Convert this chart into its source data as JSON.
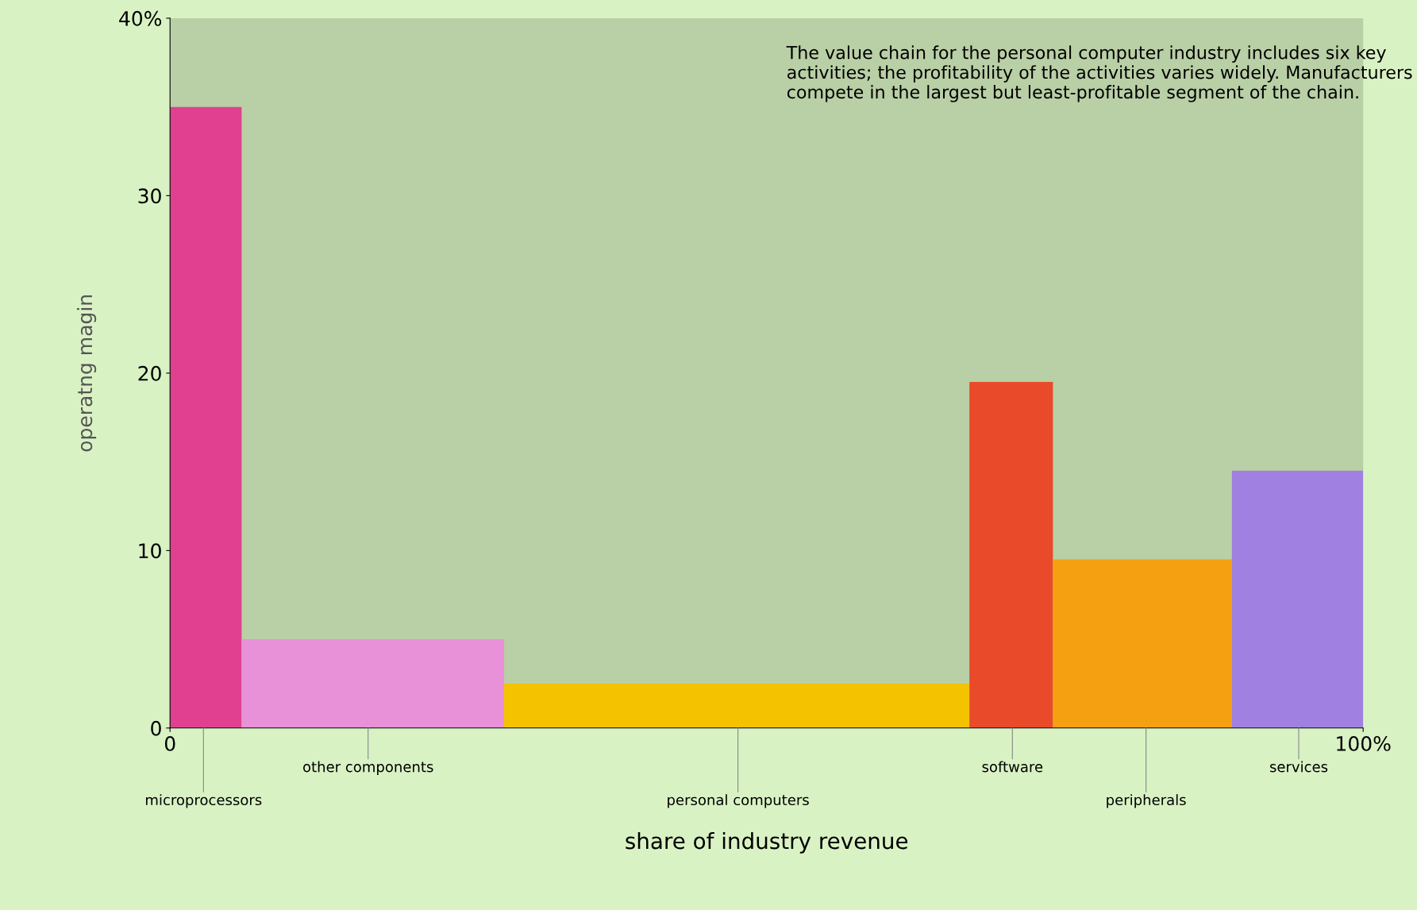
{
  "chart_data": {
    "type": "histogram",
    "bins": [
      0,
      6,
      28,
      67,
      74,
      89,
      100
    ],
    "values": [
      35,
      5,
      2.5,
      19.5,
      9.5,
      14.5
    ],
    "colors": [
      "#e0408f",
      "#e890d8",
      "#f5c200",
      "#e84a2a",
      "#f5a010",
      "#a080e0"
    ],
    "xlabel": "share of industry revenue",
    "ylabel": "operatng magin",
    "xlim": [
      0,
      100
    ],
    "xticks": [
      0,
      {
        "value": 100,
        "label": "100%"
      }
    ],
    "ylim": [
      0,
      40
    ],
    "yticks": [
      0,
      10,
      20,
      30,
      {
        "value": 40,
        "label": "40%"
      }
    ],
    "annotations": [
      {
        "text": "microprocessors",
        "x": 2.8,
        "y": 0
      },
      {
        "text": "other components",
        "x": 16.6,
        "y": 0
      },
      {
        "text": "personal computers",
        "x": 47.6,
        "y": 0
      },
      {
        "text": "software",
        "x": 70.6,
        "y": 0
      },
      {
        "text": "peripherals",
        "x": 81.8,
        "y": 0
      },
      {
        "text": "services",
        "x": 94.6,
        "y": 0
      },
      "The value chain for the personal computer industry includes six key activities; the profitability of the activities varies widely. Manufacturers compete in the largest but least-profitable segment of the chain."
    ],
    "grid": false,
    "legend": false
  }
}
